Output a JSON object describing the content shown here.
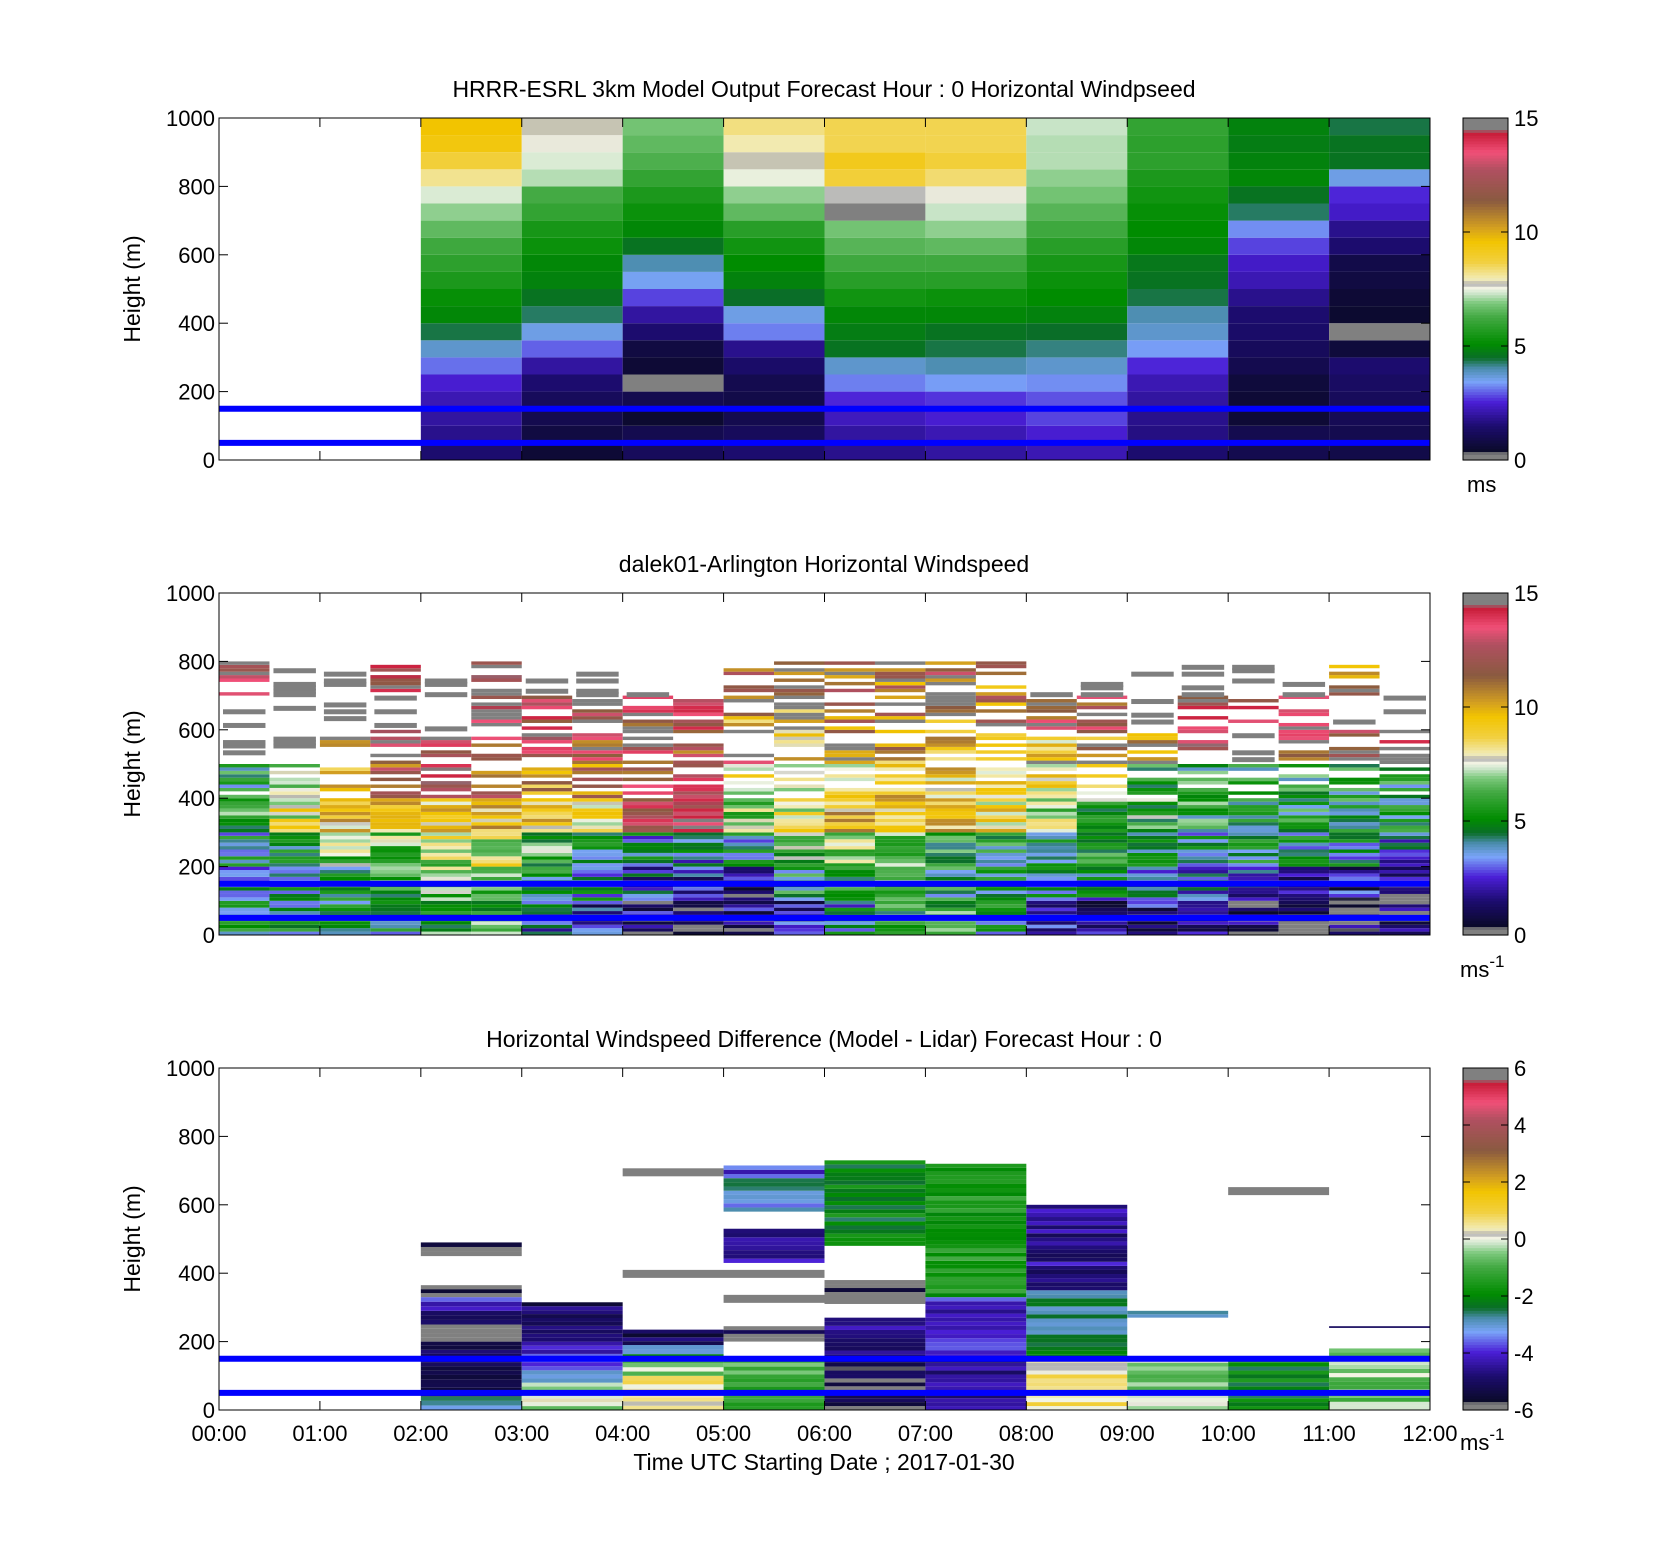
{
  "chart_data": [
    {
      "type": "heatmap",
      "title": "HRRR-ESRL 3km Model Output   Forecast Hour : 0 Horizontal Windpseed",
      "ylabel": "Height (m)",
      "ylim": [
        0,
        1000
      ],
      "yticks": [
        "0",
        "200",
        "400",
        "600",
        "800",
        "1000"
      ],
      "xlim_hours": [
        0,
        12
      ],
      "x_ticks_labeled": false,
      "colorbar": {
        "min": 0,
        "max": 15,
        "ticks": [
          "0",
          "5",
          "10",
          "15"
        ],
        "unit": "ms",
        "unit_sup": ""
      },
      "reference_lines_m": [
        50,
        150
      ],
      "data_coverage_hours": [
        2,
        12
      ],
      "value_grid": {
        "columns_hour_start": [
          2,
          3,
          4,
          5,
          6,
          7,
          8,
          9,
          10,
          11
        ],
        "rows_m": [
          25,
          75,
          125,
          175,
          225,
          275,
          325,
          375,
          425,
          475,
          525,
          575,
          625,
          675,
          725,
          775,
          825,
          875,
          925,
          975
        ],
        "values_ms": [
          [
            1.5,
            0.6,
            1.2,
            1.5,
            1.8,
            2.0,
            2.2,
            1.5,
            1.0,
            0.9
          ],
          [
            1.8,
            0.8,
            1.0,
            1.2,
            2.0,
            2.2,
            2.5,
            1.7,
            1.0,
            1.0
          ],
          [
            2.0,
            1.0,
            0.5,
            1.0,
            2.3,
            2.5,
            2.8,
            1.8,
            0.6,
            1.1
          ],
          [
            2.2,
            1.2,
            1.0,
            0.9,
            2.6,
            2.7,
            2.9,
            2.0,
            0.6,
            1.2
          ],
          [
            2.5,
            1.5,
            0.0,
            1.0,
            3.2,
            3.4,
            3.3,
            2.2,
            0.7,
            1.3
          ],
          [
            3.1,
            2.0,
            0.6,
            1.4,
            3.8,
            4.0,
            3.8,
            2.6,
            1.0,
            1.5
          ],
          [
            3.8,
            3.0,
            0.8,
            1.8,
            4.6,
            4.4,
            4.2,
            3.4,
            1.2,
            0.7
          ],
          [
            4.4,
            3.6,
            1.5,
            3.2,
            4.8,
            4.6,
            4.5,
            3.8,
            1.4,
            0.0
          ],
          [
            5.0,
            4.3,
            2.0,
            3.6,
            5.0,
            5.0,
            4.9,
            4.0,
            1.5,
            0.5
          ],
          [
            5.2,
            4.6,
            2.8,
            4.5,
            5.4,
            5.3,
            5.1,
            4.4,
            1.8,
            0.6
          ],
          [
            5.6,
            4.9,
            3.5,
            4.9,
            5.8,
            5.8,
            5.3,
            4.6,
            2.2,
            0.8
          ],
          [
            5.9,
            5.0,
            4.0,
            5.1,
            6.2,
            6.2,
            5.5,
            4.7,
            2.4,
            0.9
          ],
          [
            6.2,
            5.3,
            4.6,
            5.4,
            6.5,
            6.6,
            5.8,
            5.0,
            2.8,
            1.5
          ],
          [
            6.6,
            5.5,
            5.0,
            5.8,
            6.8,
            7.0,
            6.2,
            5.1,
            3.3,
            1.8
          ],
          [
            7.0,
            6.0,
            5.3,
            6.6,
            0.0,
            7.3,
            6.5,
            5.2,
            4.3,
            2.4
          ],
          [
            7.4,
            6.3,
            5.6,
            7.0,
            7.7,
            7.6,
            6.8,
            5.4,
            4.6,
            2.6
          ],
          [
            8.2,
            7.2,
            6.0,
            7.5,
            8.8,
            8.4,
            7.0,
            5.6,
            5.0,
            3.6
          ],
          [
            8.8,
            7.4,
            6.4,
            7.8,
            9.2,
            8.8,
            7.2,
            5.9,
            4.9,
            4.6
          ],
          [
            9.4,
            7.6,
            6.6,
            8.0,
            8.6,
            8.6,
            7.2,
            5.9,
            4.8,
            4.6
          ],
          [
            9.6,
            7.8,
            6.8,
            8.3,
            8.6,
            8.6,
            7.3,
            6.0,
            4.9,
            4.4
          ]
        ]
      }
    },
    {
      "type": "heatmap",
      "title": "dalek01-Arlington  Horizontal Windspeed",
      "ylabel": "Height (m)",
      "ylim": [
        0,
        1000
      ],
      "yticks": [
        "0",
        "200",
        "400",
        "600",
        "800",
        "1000"
      ],
      "xlim_hours": [
        0,
        12
      ],
      "x_ticks_labeled": false,
      "colorbar": {
        "min": 0,
        "max": 15,
        "ticks": [
          "0",
          "5",
          "10",
          "15"
        ],
        "unit": "ms",
        "unit_sup": "-1"
      },
      "reference_lines_m": [
        50,
        150
      ],
      "data_coverage_hours": [
        0,
        12
      ],
      "value_grid_approx": {
        "columns_hour_center": [
          0.25,
          0.75,
          1.25,
          1.75,
          2.25,
          2.75,
          3.25,
          3.75,
          4.25,
          4.75,
          5.25,
          5.75,
          6.25,
          6.75,
          7.25,
          7.75,
          8.25,
          8.75,
          9.25,
          9.75,
          10.25,
          10.75,
          11.25,
          11.75
        ],
        "rows_m": [
          50,
          150,
          250,
          350,
          450,
          550,
          650,
          750
        ],
        "values_ms": [
          [
            4.5,
            4.5,
            5.0,
            4.5,
            5.5,
            6.0,
            3.5,
            2.5,
            1.5,
            1.2,
            1.5,
            2.0,
            4.0,
            5.5,
            5.5,
            4.5,
            2.0,
            1.5,
            1.5,
            1.2,
            1.0,
            1.2,
            1.0,
            1.0
          ],
          [
            3.5,
            4.0,
            5.0,
            5.5,
            6.5,
            7.0,
            5.0,
            4.0,
            3.0,
            2.5,
            2.0,
            5.0,
            5.0,
            6.0,
            5.0,
            5.0,
            4.5,
            4.0,
            3.5,
            3.5,
            3.0,
            2.0,
            2.0,
            1.0
          ],
          [
            4.5,
            5.0,
            6.5,
            6.5,
            7.5,
            8.0,
            6.0,
            5.0,
            4.0,
            3.5,
            4.5,
            6.5,
            7.0,
            7.0,
            5.5,
            5.0,
            5.0,
            5.0,
            5.0,
            4.5,
            4.5,
            4.5,
            4.0,
            3.0
          ],
          [
            6.0,
            8.0,
            9.0,
            9.0,
            9.0,
            9.5,
            9.0,
            8.0,
            13.0,
            13.5,
            7.0,
            8.0,
            9.5,
            9.5,
            9.0,
            8.5,
            7.0,
            6.0,
            6.0,
            5.5,
            5.0,
            5.0,
            5.0,
            5.0
          ],
          [
            5.0,
            7.0,
            10.0,
            12.0,
            13.0,
            12.0,
            10.0,
            11.0,
            12.5,
            13.0,
            8.0,
            7.5,
            8.0,
            9.5,
            9.0,
            8.5,
            8.5,
            8.0,
            6.0,
            5.5,
            5.0,
            5.5,
            5.0,
            5.0
          ],
          [
            null,
            null,
            12.0,
            13.0,
            13.0,
            12.0,
            13.0,
            12.0,
            12.5,
            12.0,
            13.5,
            9.5,
            10.0,
            10.0,
            9.5,
            9.0,
            9.0,
            10.0,
            11.0,
            13.0,
            null,
            12.0,
            13.0,
            13.0
          ],
          [
            null,
            null,
            null,
            null,
            null,
            13.0,
            13.0,
            13.0,
            12.5,
            13.0,
            10.0,
            10.0,
            10.5,
            10.5,
            10.5,
            11.0,
            12.0,
            12.0,
            null,
            13.0,
            13.0,
            13.0,
            null,
            null
          ],
          [
            13.0,
            null,
            null,
            13.0,
            null,
            13.0,
            null,
            null,
            null,
            null,
            11.0,
            12.0,
            11.5,
            11.0,
            11.5,
            11.0,
            null,
            null,
            null,
            null,
            null,
            null,
            11.0,
            null
          ]
        ]
      }
    },
    {
      "type": "heatmap",
      "title": "Horizontal Windspeed Difference (Model - Lidar) Forecast Hour : 0",
      "xlabel": "Time UTC  Starting Date ; 2017-01-30",
      "ylabel": "Height (m)",
      "ylim": [
        0,
        1000
      ],
      "yticks": [
        "0",
        "200",
        "400",
        "600",
        "800",
        "1000"
      ],
      "xlim_hours": [
        0,
        12
      ],
      "xticks": [
        "00:00",
        "01:00",
        "02:00",
        "03:00",
        "04:00",
        "05:00",
        "06:00",
        "07:00",
        "08:00",
        "09:00",
        "10:00",
        "11:00",
        "12:00"
      ],
      "colorbar": {
        "min": -6,
        "max": 6,
        "ticks": [
          "-6",
          "-4",
          "-2",
          "0",
          "2",
          "4",
          "6"
        ],
        "unit": "ms",
        "unit_sup": "-1"
      },
      "reference_lines_m": [
        50,
        150
      ],
      "blocks_approx": [
        {
          "t0": 2,
          "t1": 3,
          "h0": 0,
          "h1": 40,
          "v": -3.0
        },
        {
          "t0": 2,
          "t1": 3,
          "h0": 40,
          "h1": 140,
          "v": -5.5
        },
        {
          "t0": 2,
          "t1": 3,
          "h0": 140,
          "h1": 200,
          "v": -5.0
        },
        {
          "t0": 2,
          "t1": 3,
          "h0": 200,
          "h1": 250,
          "v": -6.0
        },
        {
          "t0": 2,
          "t1": 3,
          "h0": 250,
          "h1": 290,
          "v": -5.0
        },
        {
          "t0": 2,
          "t1": 3,
          "h0": 290,
          "h1": 330,
          "v": -4.0
        },
        {
          "t0": 2,
          "t1": 3,
          "h0": 330,
          "h1": 365,
          "v": -6.0
        },
        {
          "t0": 2,
          "t1": 3,
          "h0": 450,
          "h1": 490,
          "v": -6.0
        },
        {
          "t0": 3,
          "t1": 4,
          "h0": 0,
          "h1": 80,
          "v": -0.2
        },
        {
          "t0": 3,
          "t1": 4,
          "h0": 80,
          "h1": 140,
          "v": -3.5
        },
        {
          "t0": 3,
          "t1": 4,
          "h0": 140,
          "h1": 200,
          "v": -4.0
        },
        {
          "t0": 3,
          "t1": 4,
          "h0": 200,
          "h1": 315,
          "v": -5.0
        },
        {
          "t0": 4,
          "t1": 5,
          "h0": 0,
          "h1": 100,
          "v": 0.5
        },
        {
          "t0": 4,
          "t1": 5,
          "h0": 100,
          "h1": 150,
          "v": -0.5
        },
        {
          "t0": 4,
          "t1": 5,
          "h0": 150,
          "h1": 190,
          "v": -2.5
        },
        {
          "t0": 4,
          "t1": 5,
          "h0": 190,
          "h1": 235,
          "v": -5.0
        },
        {
          "t0": 5,
          "t1": 6,
          "h0": 0,
          "h1": 150,
          "v": -1.0
        },
        {
          "t0": 5,
          "t1": 6,
          "h0": 200,
          "h1": 245,
          "v": -5.5
        },
        {
          "t0": 5,
          "t1": 6,
          "h0": 430,
          "h1": 530,
          "v": -4.5
        },
        {
          "t0": 5,
          "t1": 6,
          "h0": 580,
          "h1": 690,
          "v": -3.0
        },
        {
          "t0": 5,
          "t1": 6,
          "h0": 690,
          "h1": 715,
          "v": -3.8
        },
        {
          "t0": 6,
          "t1": 7,
          "h0": 0,
          "h1": 150,
          "v": -5.5
        },
        {
          "t0": 6,
          "t1": 7,
          "h0": 150,
          "h1": 270,
          "v": -4.5
        },
        {
          "t0": 6,
          "t1": 7,
          "h0": 310,
          "h1": 380,
          "v": -6.0
        },
        {
          "t0": 6,
          "t1": 7,
          "h0": 480,
          "h1": 730,
          "v": -2.0
        },
        {
          "t0": 7,
          "t1": 8,
          "h0": 0,
          "h1": 150,
          "v": -4.5
        },
        {
          "t0": 7,
          "t1": 8,
          "h0": 150,
          "h1": 330,
          "v": -4.0
        },
        {
          "t0": 7,
          "t1": 8,
          "h0": 330,
          "h1": 720,
          "v": -1.5
        },
        {
          "t0": 8,
          "t1": 9,
          "h0": 0,
          "h1": 150,
          "v": 0.5
        },
        {
          "t0": 8,
          "t1": 9,
          "h0": 150,
          "h1": 350,
          "v": -2.5
        },
        {
          "t0": 8,
          "t1": 9,
          "h0": 350,
          "h1": 600,
          "v": -4.5
        },
        {
          "t0": 9,
          "t1": 10,
          "h0": 0,
          "h1": 150,
          "v": -0.5
        },
        {
          "t0": 9,
          "t1": 10,
          "h0": 270,
          "h1": 290,
          "v": -3.0
        },
        {
          "t0": 10,
          "t1": 11,
          "h0": 0,
          "h1": 150,
          "v": -2.0
        },
        {
          "t0": 11,
          "t1": 12,
          "h0": 0,
          "h1": 180,
          "v": -0.5
        },
        {
          "t0": 11,
          "t1": 12,
          "h0": 240,
          "h1": 245,
          "v": -5.0
        }
      ],
      "gray_strips_approx": [
        {
          "t0": 4,
          "t1": 5,
          "h": 695
        },
        {
          "t0": 10,
          "t1": 11,
          "h": 640
        },
        {
          "t0": 4,
          "t1": 6,
          "h": 398
        },
        {
          "t0": 5,
          "t1": 7,
          "h": 325
        }
      ]
    }
  ]
}
